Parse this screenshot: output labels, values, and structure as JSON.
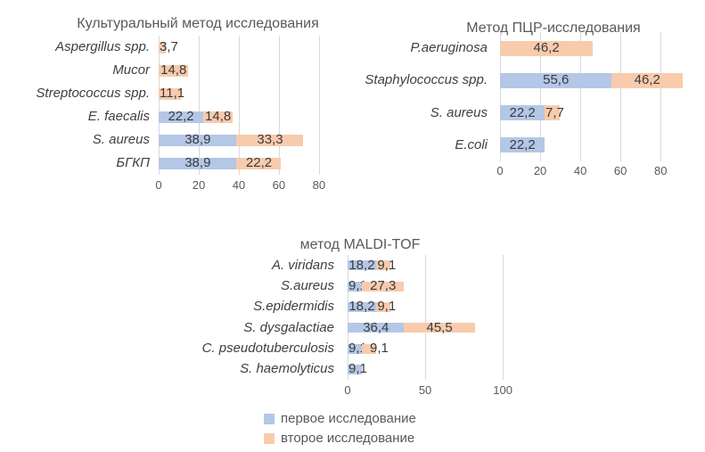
{
  "colors": {
    "series1": "#B4C7E7",
    "series2": "#F8CBAD",
    "title_text": "#595959",
    "axis_text": "#595959",
    "category_text": "#404040",
    "data_label_text": "#3b3b3b",
    "gridline": "#D9D9D9",
    "background": "#FFFFFF"
  },
  "legend": {
    "items": [
      {
        "label": "первое исследование",
        "color_key": "series1"
      },
      {
        "label": "второе исследование",
        "color_key": "series2"
      }
    ]
  },
  "chart_data": [
    {
      "type": "bar",
      "orientation": "horizontal",
      "stacked": true,
      "grid": true,
      "legend_position": "none",
      "title": "Культуральный метод исследования",
      "categories": [
        "Aspergillus spp.",
        "Mucor",
        "Streptococcus spp.",
        "E. faecalis",
        "S. aureus",
        "БГКП"
      ],
      "series": [
        {
          "name": "первое исследование",
          "values": [
            0,
            0,
            0,
            22.2,
            38.9,
            38.9
          ],
          "labels": [
            "",
            "",
            "",
            "22,2",
            "38,9",
            "38,9"
          ]
        },
        {
          "name": "второе исследование",
          "values": [
            3.7,
            14.8,
            11.1,
            14.8,
            33.3,
            22.2
          ],
          "labels": [
            "3,7",
            "14,8",
            "11,1",
            "14,8",
            "33,3",
            "22,2"
          ]
        }
      ],
      "x_ticks": [
        0,
        20,
        40,
        60,
        80
      ],
      "x_tick_labels": [
        "0",
        "20",
        "40",
        "60",
        "80"
      ],
      "xlim": [
        0,
        80.5
      ]
    },
    {
      "type": "bar",
      "orientation": "horizontal",
      "stacked": true,
      "grid": true,
      "legend_position": "none",
      "title": "Метод ПЦР-исследования",
      "categories": [
        "P.aeruginosa",
        "Staphylococcus spp.",
        "S. aureus",
        "E.coli"
      ],
      "series": [
        {
          "name": "первое исследование",
          "values": [
            0,
            55.6,
            22.2,
            22.2
          ],
          "labels": [
            "",
            "55,6",
            "22,2",
            "22,2"
          ]
        },
        {
          "name": "второе исследование",
          "values": [
            46.2,
            46.2,
            7.7,
            0
          ],
          "labels": [
            "46,2",
            "46,2",
            "7,7",
            ""
          ]
        }
      ],
      "x_ticks": [
        0,
        20,
        40,
        60,
        80
      ],
      "x_tick_labels": [
        "0",
        "20",
        "40",
        "60",
        "80"
      ],
      "xlim": [
        0,
        91
      ]
    },
    {
      "type": "bar",
      "orientation": "horizontal",
      "stacked": true,
      "grid": true,
      "legend_position": "bottom",
      "title": "метод MALDI-TOF",
      "categories": [
        "A. viridans",
        "S.aureus",
        "S.epidermidis",
        "S. dysgalactiae",
        "C. pseudotuberculosis",
        "S. haemolyticus"
      ],
      "series": [
        {
          "name": "первое исследование",
          "values": [
            18.2,
            9.1,
            18.2,
            36.4,
            9.1,
            9.1
          ],
          "labels": [
            "18,2",
            "9,1",
            "18,2",
            "36,4",
            "9,1",
            "9,1"
          ]
        },
        {
          "name": "второе исследование",
          "values": [
            9.1,
            27.3,
            9.1,
            45.5,
            9.1,
            0
          ],
          "labels": [
            "9,1",
            "27,3",
            "9,1",
            "45,5",
            "9,1",
            ""
          ]
        }
      ],
      "x_ticks": [
        0,
        50,
        100
      ],
      "x_tick_labels": [
        "0",
        "50",
        "100"
      ],
      "xlim": [
        0,
        100.5
      ]
    }
  ]
}
